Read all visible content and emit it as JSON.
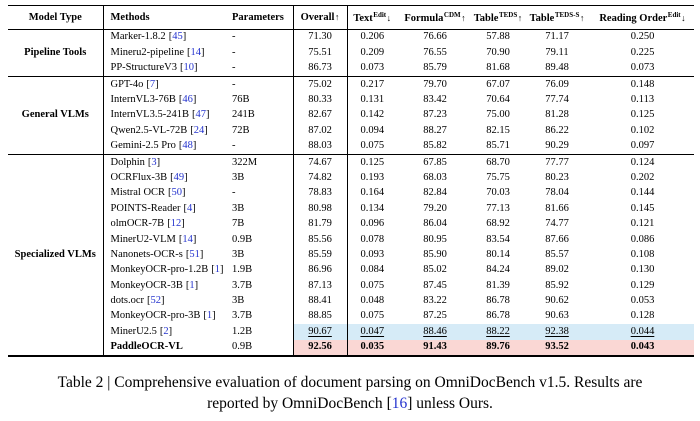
{
  "punct": {
    "lb": "[",
    "rb": "]"
  },
  "colors": {
    "link_blue": "#2433CE",
    "highlight_blue": "#D6EBF7",
    "highlight_pink": "#FAD7D4"
  },
  "table": {
    "columns": [
      {
        "key": "model-type",
        "label": "Model Type",
        "sup": "",
        "arrow": ""
      },
      {
        "key": "methods",
        "label": "Methods",
        "sup": "",
        "arrow": ""
      },
      {
        "key": "parameters",
        "label": "Parameters",
        "sup": "",
        "arrow": ""
      },
      {
        "key": "overall",
        "label": "Overall",
        "sup": "",
        "arrow": "↑"
      },
      {
        "key": "text-edit",
        "label": "Text",
        "sup": "Edit",
        "arrow": "↓"
      },
      {
        "key": "formula-cdm",
        "label": "Formula",
        "sup": "CDM",
        "arrow": "↑"
      },
      {
        "key": "table-teds",
        "label": "Table",
        "sup": "TEDS",
        "arrow": "↑"
      },
      {
        "key": "table-teds-s",
        "label": "Table",
        "sup": "TEDS-S",
        "arrow": "↑"
      },
      {
        "key": "reading-order",
        "label": "Reading Order",
        "sup": "Edit",
        "arrow": "↓"
      }
    ],
    "groups": [
      {
        "name": "Pipeline Tools",
        "rows": [
          {
            "method": "Marker-1.8.2",
            "ref": "45",
            "params": "-",
            "overall": "71.30",
            "text": "0.206",
            "formula": "76.66",
            "teds": "57.88",
            "teds_s": "71.17",
            "order": "0.250"
          },
          {
            "method": "Mineru2-pipeline",
            "ref": "14",
            "params": "-",
            "overall": "75.51",
            "text": "0.209",
            "formula": "76.55",
            "teds": "70.90",
            "teds_s": "79.11",
            "order": "0.225"
          },
          {
            "method": "PP-StructureV3",
            "ref": "10",
            "params": "-",
            "overall": "86.73",
            "text": "0.073",
            "formula": "85.79",
            "teds": "81.68",
            "teds_s": "89.48",
            "order": "0.073"
          }
        ]
      },
      {
        "name": "General VLMs",
        "rows": [
          {
            "method": "GPT-4o",
            "ref": "7",
            "params": "-",
            "overall": "75.02",
            "text": "0.217",
            "formula": "79.70",
            "teds": "67.07",
            "teds_s": "76.09",
            "order": "0.148"
          },
          {
            "method": "InternVL3-76B",
            "ref": "46",
            "params": "76B",
            "overall": "80.33",
            "text": "0.131",
            "formula": "83.42",
            "teds": "70.64",
            "teds_s": "77.74",
            "order": "0.113"
          },
          {
            "method": "InternVL3.5-241B",
            "ref": "47",
            "params": "241B",
            "overall": "82.67",
            "text": "0.142",
            "formula": "87.23",
            "teds": "75.00",
            "teds_s": "81.28",
            "order": "0.125"
          },
          {
            "method": "Qwen2.5-VL-72B",
            "ref": "24",
            "params": "72B",
            "overall": "87.02",
            "text": "0.094",
            "formula": "88.27",
            "teds": "82.15",
            "teds_s": "86.22",
            "order": "0.102"
          },
          {
            "method": "Gemini-2.5 Pro",
            "ref": "48",
            "params": "-",
            "overall": "88.03",
            "text": "0.075",
            "formula": "85.82",
            "teds": "85.71",
            "teds_s": "90.29",
            "order": "0.097"
          }
        ]
      },
      {
        "name": "Specialized VLMs",
        "rows": [
          {
            "method": "Dolphin",
            "ref": "3",
            "params": "322M",
            "overall": "74.67",
            "text": "0.125",
            "formula": "67.85",
            "teds": "68.70",
            "teds_s": "77.77",
            "order": "0.124"
          },
          {
            "method": "OCRFlux-3B",
            "ref": "49",
            "params": "3B",
            "overall": "74.82",
            "text": "0.193",
            "formula": "68.03",
            "teds": "75.75",
            "teds_s": "80.23",
            "order": "0.202"
          },
          {
            "method": "Mistral OCR",
            "ref": "50",
            "params": "-",
            "overall": "78.83",
            "text": "0.164",
            "formula": "82.84",
            "teds": "70.03",
            "teds_s": "78.04",
            "order": "0.144"
          },
          {
            "method": "POINTS-Reader",
            "ref": "4",
            "params": "3B",
            "overall": "80.98",
            "text": "0.134",
            "formula": "79.20",
            "teds": "77.13",
            "teds_s": "81.66",
            "order": "0.145"
          },
          {
            "method": "olmOCR-7B",
            "ref": "12",
            "params": "7B",
            "overall": "81.79",
            "text": "0.096",
            "formula": "86.04",
            "teds": "68.92",
            "teds_s": "74.77",
            "order": "0.121"
          },
          {
            "method": "MinerU2-VLM",
            "ref": "14",
            "params": "0.9B",
            "overall": "85.56",
            "text": "0.078",
            "formula": "80.95",
            "teds": "83.54",
            "teds_s": "87.66",
            "order": "0.086"
          },
          {
            "method": "Nanonets-OCR-s",
            "ref": "51",
            "params": "3B",
            "overall": "85.59",
            "text": "0.093",
            "formula": "85.90",
            "teds": "80.14",
            "teds_s": "85.57",
            "order": "0.108"
          },
          {
            "method": "MonkeyOCR-pro-1.2B",
            "ref": "1",
            "params": "1.9B",
            "overall": "86.96",
            "text": "0.084",
            "formula": "85.02",
            "teds": "84.24",
            "teds_s": "89.02",
            "order": "0.130"
          },
          {
            "method": "MonkeyOCR-3B",
            "ref": "1",
            "params": "3.7B",
            "overall": "87.13",
            "text": "0.075",
            "formula": "87.45",
            "teds": "81.39",
            "teds_s": "85.92",
            "order": "0.129"
          },
          {
            "method": "dots.ocr",
            "ref": "52",
            "params": "3B",
            "overall": "88.41",
            "text": "0.048",
            "formula": "83.22",
            "teds": "86.78",
            "teds_s": "90.62",
            "order": "0.053"
          },
          {
            "method": "MonkeyOCR-pro-3B",
            "ref": "1",
            "params": "3.7B",
            "overall": "88.85",
            "text": "0.075",
            "formula": "87.25",
            "teds": "86.78",
            "teds_s": "90.63",
            "order": "0.128"
          },
          {
            "method": "MinerU2.5",
            "ref": "2",
            "params": "1.2B",
            "overall": "90.67",
            "text": "0.047",
            "formula": "88.46",
            "teds": "88.22",
            "teds_s": "92.38",
            "order": "0.044",
            "highlight": "blue",
            "value_style": "underline"
          },
          {
            "method": "PaddleOCR-VL",
            "ref": null,
            "params": "0.9B",
            "overall": "92.56",
            "text": "0.035",
            "formula": "91.43",
            "teds": "89.76",
            "teds_s": "93.52",
            "order": "0.043",
            "highlight": "pink",
            "value_style": "bold",
            "method_bold": true
          }
        ]
      }
    ]
  },
  "caption": {
    "line1": "Table 2 | Comprehensive evaluation of document parsing on OmniDocBench v1.5. Results are",
    "line2_pre": "reported by OmniDocBench ",
    "ref": "16",
    "line2_post": " unless Ours."
  }
}
